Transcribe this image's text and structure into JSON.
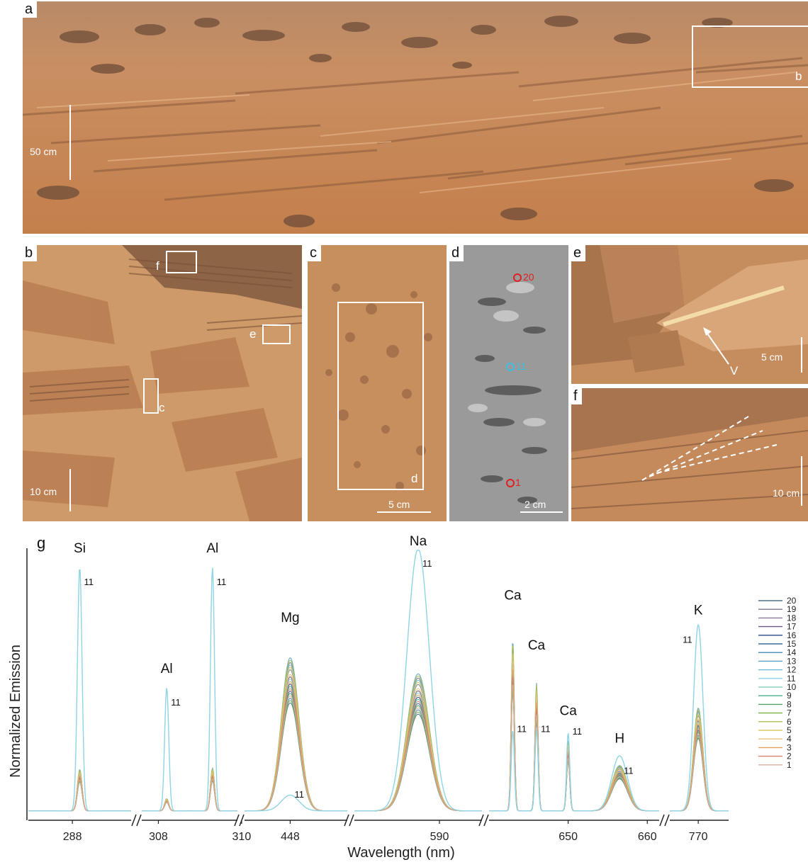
{
  "panels": {
    "a": {
      "label": "a",
      "scale": "50 cm",
      "box_label": "b"
    },
    "b": {
      "label": "b",
      "scale": "10 cm",
      "box_f": "f",
      "box_e": "e",
      "box_c": "c"
    },
    "c": {
      "label": "c",
      "scale": "5 cm",
      "box_d": "d"
    },
    "d": {
      "label": "d",
      "scale": "2 cm",
      "spot_top": "20",
      "spot_mid": "11",
      "spot_bot": "1"
    },
    "e": {
      "label": "e",
      "scale": "5 cm",
      "arrow_label": "V"
    },
    "f": {
      "label": "f",
      "scale": "10 cm"
    }
  },
  "colors": {
    "sand": "#c98a56",
    "rock_light": "#d9a377",
    "rock_dark": "#8a5a3a",
    "point11": "#3fbfe0",
    "spot_red": "#e02020"
  },
  "chart_data": {
    "type": "line",
    "panel_label": "g",
    "xlabel": "Wavelength (nm)",
    "ylabel": "Normalized Emission",
    "segments": [
      {
        "ticks": [
          "288"
        ]
      },
      {
        "ticks": [
          "308",
          "310"
        ]
      },
      {
        "ticks": [
          "448"
        ]
      },
      {
        "ticks": [
          "590"
        ]
      },
      {
        "ticks": [
          "650",
          "660"
        ]
      },
      {
        "ticks": [
          "770"
        ]
      }
    ],
    "peaks": [
      {
        "element": "Si",
        "x": 288.2,
        "height_pt11": 0.93,
        "height_others": 0.17
      },
      {
        "element": "Al",
        "x": 308.2,
        "height_pt11": 0.47,
        "height_others": 0.05
      },
      {
        "element": "Al",
        "x": 309.3,
        "height_pt11": 0.93,
        "height_others": 0.17
      },
      {
        "element": "Mg",
        "x": 448.0,
        "height_pt11": 0.06,
        "height_others": 0.67
      },
      {
        "element": "Na",
        "x": 589.0,
        "height_pt11": 1.0,
        "height_others": 0.6
      },
      {
        "element": "Ca",
        "x": 643.0,
        "height_pt11": 0.31,
        "height_others": 0.75
      },
      {
        "element": "Ca",
        "x": 646.0,
        "height_pt11": 0.31,
        "height_others": 0.56
      },
      {
        "element": "Ca",
        "x": 650.0,
        "height_pt11": 0.3,
        "height_others": 0.31
      },
      {
        "element": "H",
        "x": 656.5,
        "height_pt11": 0.21,
        "height_others": 0.17
      },
      {
        "element": "K",
        "x": 770.0,
        "height_pt11": 0.71,
        "height_others": 0.45
      }
    ],
    "series_names": [
      "20",
      "19",
      "18",
      "17",
      "16",
      "15",
      "14",
      "13",
      "12",
      "11",
      "10",
      "9",
      "8",
      "7",
      "6",
      "5",
      "4",
      "3",
      "2",
      "1"
    ],
    "series_colors": [
      "#4a6f8a",
      "#7a7a90",
      "#8a7a9a",
      "#6a5a8a",
      "#2a4a8a",
      "#3a6a9a",
      "#4a8ab0",
      "#5aa0c0",
      "#70b8d0",
      "#8fd4e4",
      "#90d0c8",
      "#4ab090",
      "#58a060",
      "#78b048",
      "#a8c050",
      "#d8c860",
      "#e8c080",
      "#e0a060",
      "#d88070",
      "#d8b0a0"
    ],
    "point_label": "11"
  }
}
